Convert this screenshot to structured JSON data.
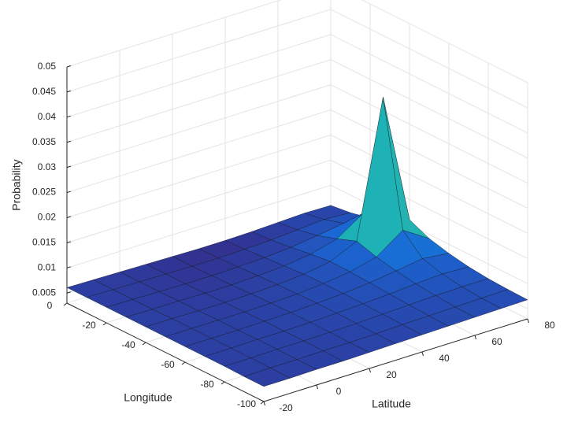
{
  "chart_data": {
    "type": "surface",
    "xlabel": "Latitude",
    "ylabel": "Longitude",
    "zlabel": "Probability",
    "x": [
      -20,
      -10,
      0,
      10,
      20,
      30,
      40,
      50,
      60,
      70,
      80
    ],
    "y": [
      0,
      -10,
      -20,
      -30,
      -40,
      -50,
      -60,
      -70,
      -80,
      -90,
      -100
    ],
    "z": [
      [
        0.0061,
        0.006,
        0.0059,
        0.0058,
        0.0057,
        0.0056,
        0.0056,
        0.0057,
        0.0059,
        0.0061,
        0.006
      ],
      [
        0.0061,
        0.006,
        0.0059,
        0.0058,
        0.0057,
        0.0057,
        0.0058,
        0.006,
        0.0064,
        0.0068,
        0.0065
      ],
      [
        0.0061,
        0.006,
        0.0059,
        0.0058,
        0.0058,
        0.0059,
        0.0061,
        0.0065,
        0.0072,
        0.008,
        0.0074
      ],
      [
        0.0061,
        0.006,
        0.006,
        0.0059,
        0.0059,
        0.0061,
        0.0064,
        0.0071,
        0.0085,
        0.012,
        0.009
      ],
      [
        0.0061,
        0.0061,
        0.006,
        0.006,
        0.0061,
        0.0063,
        0.0067,
        0.0076,
        0.01,
        0.037,
        0.011
      ],
      [
        0.0061,
        0.0061,
        0.0061,
        0.0061,
        0.0062,
        0.0064,
        0.0068,
        0.0075,
        0.0088,
        0.0125,
        0.0092
      ],
      [
        0.0061,
        0.0061,
        0.0061,
        0.0062,
        0.0063,
        0.0065,
        0.0068,
        0.0073,
        0.008,
        0.0088,
        0.0082
      ],
      [
        0.0061,
        0.0061,
        0.0062,
        0.0062,
        0.0063,
        0.0065,
        0.0067,
        0.007,
        0.0074,
        0.0077,
        0.0075
      ],
      [
        0.0061,
        0.0061,
        0.0062,
        0.0062,
        0.0063,
        0.0064,
        0.0066,
        0.0068,
        0.007,
        0.0071,
        0.0071
      ],
      [
        0.006,
        0.0061,
        0.0061,
        0.0062,
        0.0062,
        0.0063,
        0.0065,
        0.0066,
        0.0067,
        0.0068,
        0.0069
      ],
      [
        0.006,
        0.006,
        0.0061,
        0.0061,
        0.0062,
        0.0063,
        0.0064,
        0.0065,
        0.0066,
        0.0067,
        0.0068
      ]
    ],
    "xlim": [
      -20,
      80
    ],
    "ylim": [
      -100,
      0
    ],
    "zlim": [
      0.003,
      0.05
    ],
    "xticks": [
      -20,
      0,
      20,
      40,
      60,
      80
    ],
    "yticks": [
      -100,
      -80,
      -60,
      -40,
      -20,
      0
    ],
    "zticks": [
      0.005,
      0.01,
      0.015,
      0.02,
      0.025,
      0.03,
      0.035,
      0.04,
      0.045,
      0.05
    ],
    "grid": true,
    "colormap": "parula"
  }
}
